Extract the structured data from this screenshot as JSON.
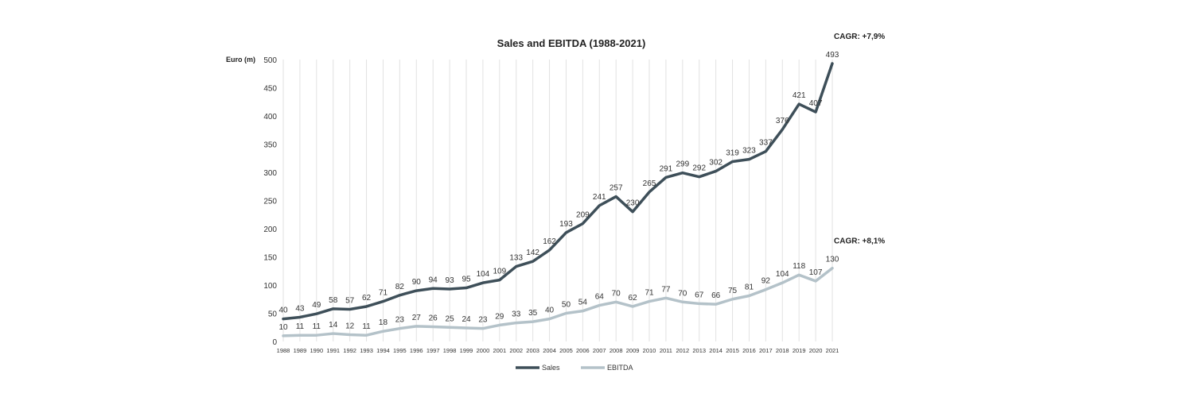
{
  "chart_data": {
    "type": "line",
    "title": "Sales and EBITDA (1988-2021)",
    "ylabel": "Euro (m)",
    "xlabel": "",
    "ylim": [
      0,
      500
    ],
    "yticks": [
      0,
      50,
      100,
      150,
      200,
      250,
      300,
      350,
      400,
      450,
      500
    ],
    "grid": "vertical",
    "legend_position": "bottom",
    "categories": [
      "1988",
      "1989",
      "1990",
      "1991",
      "1992",
      "1993",
      "1994",
      "1995",
      "1996",
      "1997",
      "1998",
      "1999",
      "2000",
      "2001",
      "2002",
      "2003",
      "2004",
      "2005",
      "2006",
      "2007",
      "2008",
      "2009",
      "2010",
      "2011",
      "2012",
      "2013",
      "2014",
      "2015",
      "2016",
      "2017",
      "2018",
      "2019",
      "2020",
      "2021"
    ],
    "series": [
      {
        "name": "Sales",
        "color": "#3e4f59",
        "values": [
          40,
          43,
          49,
          58,
          57,
          62,
          71,
          82,
          90,
          94,
          93,
          95,
          104,
          109,
          133,
          142,
          162,
          193,
          209,
          241,
          257,
          230,
          265,
          291,
          299,
          292,
          302,
          319,
          323,
          337,
          376,
          421,
          407,
          493
        ],
        "labels": [
          "40",
          "43",
          "49",
          "58",
          "57",
          "62",
          "71",
          "82",
          "90",
          "94",
          "93",
          "95",
          "104",
          "109",
          "133",
          "142",
          "162",
          "193",
          "209",
          "241",
          "257",
          "230",
          "265",
          "291",
          "299",
          "292",
          "302",
          "319",
          "323",
          "337",
          "376",
          "421",
          "407",
          "493"
        ],
        "annotation": "CAGR: +7,9%"
      },
      {
        "name": "EBITDA",
        "color": "#b4c2c9",
        "values": [
          10,
          11,
          11,
          14,
          12,
          11,
          18,
          23,
          27,
          26,
          25,
          24,
          23,
          29,
          33,
          35,
          40,
          50,
          54,
          64,
          70,
          62,
          71,
          77,
          70,
          67,
          66,
          75,
          81,
          92,
          104,
          118,
          107,
          130
        ],
        "labels": [
          "10",
          "11",
          "11",
          "14",
          "12",
          "11",
          "18",
          "23",
          "27",
          "26",
          "25",
          "24",
          "23",
          "29",
          "33",
          "35",
          "40",
          "50",
          "54",
          "64",
          "70",
          "62",
          "71",
          "77",
          "70",
          "67",
          "66",
          "75",
          "81",
          "92",
          "104",
          "118",
          "107",
          "130"
        ],
        "annotation": "CAGR: +8,1%"
      }
    ]
  }
}
